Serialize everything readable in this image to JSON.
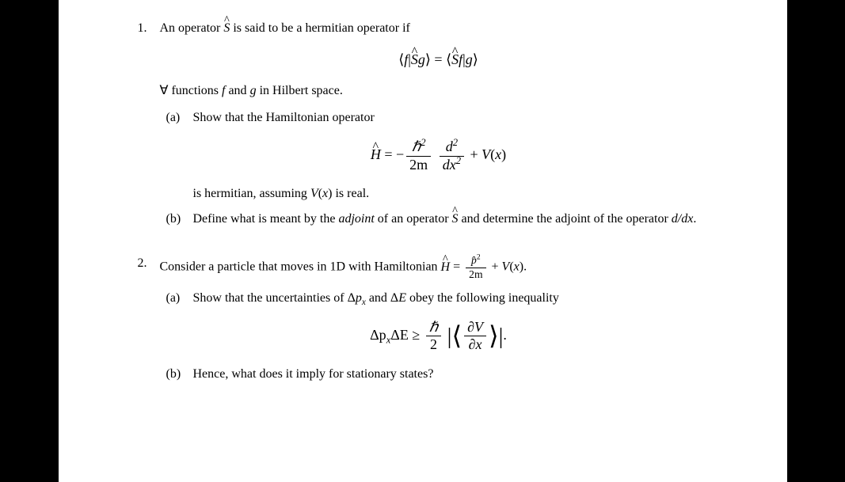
{
  "colors": {
    "page_bg": "#ffffff",
    "body_bg": "#000000",
    "text": "#000000"
  },
  "typography": {
    "font_family": "Times New Roman",
    "body_fontsize": 16,
    "equation_fontsize": 18
  },
  "problem1": {
    "number": "1.",
    "intro_pre": "An operator ",
    "intro_op": "Ŝ",
    "intro_post": " is said to be a hermitian operator if",
    "equation1": {
      "lhs_open": "⟨",
      "lhs_f": "f",
      "lhs_bar": "|",
      "lhs_op": "Ŝ",
      "lhs_g": "g",
      "lhs_close": "⟩",
      "equals": " = ",
      "rhs_open": "⟨",
      "rhs_op": "Ŝ",
      "rhs_f": "f",
      "rhs_bar": "|",
      "rhs_g": "g",
      "rhs_close": "⟩"
    },
    "continuation_forall": "∀",
    "continuation_text1": " functions ",
    "continuation_f": "f",
    "continuation_and": " and ",
    "continuation_g": "g",
    "continuation_text2": " in Hilbert space.",
    "part_a": {
      "label": "(a)",
      "text": "Show that the Hamiltonian operator",
      "equation": {
        "H_hat": "Ĥ",
        "equals": " = −",
        "frac_num_hbar": "ℏ",
        "frac_num_sup": "2",
        "frac_den_2m": "2m",
        "frac2_num_d": "d",
        "frac2_num_sup": "2",
        "frac2_den_dx": "dx",
        "frac2_den_sup": "2",
        "plus": " + ",
        "V": "V",
        "paren_open": "(",
        "x": "x",
        "paren_close": ")"
      },
      "post_text_pre": "is hermitian, assuming ",
      "post_V": "V",
      "post_paren_open": "(",
      "post_x": "x",
      "post_paren_close": ")",
      "post_text_after": " is real."
    },
    "part_b": {
      "label": "(b)",
      "text_pre": "Define what is meant by the ",
      "adjoint_word": "adjoint",
      "text_mid": " of an operator ",
      "op": "Ŝ",
      "text_mid2": " and determine the adjoint of the operator ",
      "ddx": "d/dx",
      "text_end": "."
    }
  },
  "problem2": {
    "number": "2.",
    "intro_pre": "Consider a particle that moves in 1D with Hamiltonian ",
    "H_hat": "Ĥ",
    "equals": " = ",
    "frac_num_p": "p̂",
    "frac_num_sup": "2",
    "frac_den": "2m",
    "plus": " + ",
    "V": "V",
    "paren_open": "(",
    "x": "x",
    "paren_close": ")",
    "intro_end": ".",
    "part_a": {
      "label": "(a)",
      "text_pre": "Show that the uncertainties of Δ",
      "p": "p",
      "psub": "x",
      "text_mid": " and Δ",
      "E": "E",
      "text_post": " obey the following inequality",
      "equation": {
        "delta_p": "Δp",
        "psub": "x",
        "delta_E": "ΔE",
        "geq": " ≥ ",
        "frac_num": "ℏ",
        "frac_den": "2",
        "big_open": "⟨",
        "inner_num_partial": "∂",
        "inner_num_V": "V",
        "inner_den_partial": "∂",
        "inner_den_x": "x",
        "big_close": "⟩",
        "abs_bar": "|",
        "period": "."
      }
    },
    "part_b": {
      "label": "(b)",
      "text": "Hence, what does it imply for stationary states?"
    }
  }
}
